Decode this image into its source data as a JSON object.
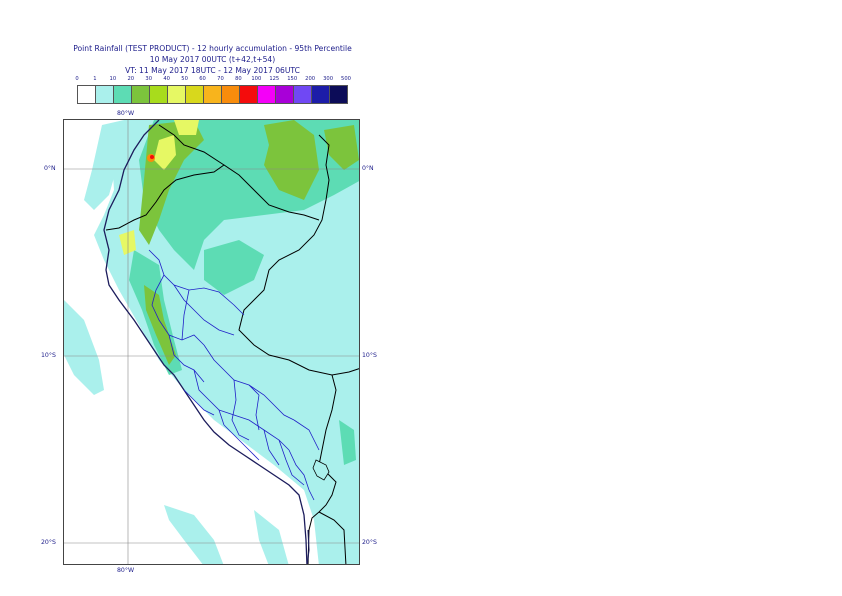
{
  "title": {
    "line1": "Point Rainfall (TEST PRODUCT) - 12 hourly accumulation - 95th Percentile",
    "line2": "10 May 2017 00UTC (t+42,t+54)",
    "line3": "VT: 11 May 2017 18UTC - 12 May 2017 06UTC"
  },
  "legend": {
    "thresholds": [
      "0",
      "1",
      "10",
      "20",
      "30",
      "40",
      "50",
      "60",
      "70",
      "80",
      "100",
      "125",
      "150",
      "200",
      "300",
      "500"
    ],
    "colors": [
      "#ffffff",
      "#aaf0ec",
      "#5ddcb4",
      "#7cc43c",
      "#a8dc1c",
      "#e6f864",
      "#d8d81c",
      "#f8b41c",
      "#f88c0c",
      "#f40c0c",
      "#f400f8",
      "#a800d8",
      "#7048f4",
      "#1c1ca8",
      "#0c0c58"
    ]
  },
  "axes": {
    "lon_label_top": "80°W",
    "lon_label_bottom": "80°W",
    "lat_labels": [
      "0°N",
      "10°S",
      "20°S"
    ]
  },
  "icons": {
    "country_borders": "black-line",
    "admin_borders": "blue-line",
    "coastline": "dark-navy-line"
  }
}
